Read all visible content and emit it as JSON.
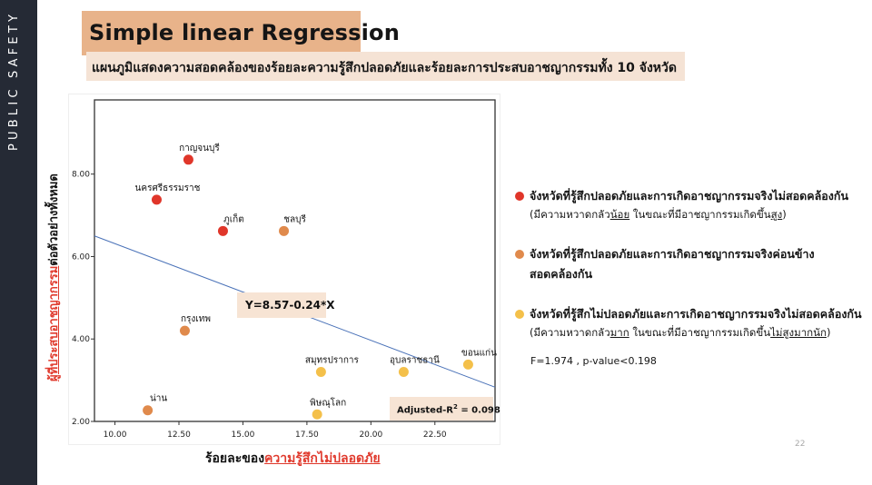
{
  "sidebar": {
    "text": "PUBLIC SAFETY"
  },
  "header": {
    "title": "Simple linear Regression",
    "subtitle": "แผนภูมิแสดงความสอดคล้องของร้อยละความรู้สึกปลอดภัยและร้อยละการประสบอาชญากรรมทั้ง 10 จังหวัด"
  },
  "axis_labels": {
    "y_prefix": "ผู้ที่ประสบอาชญากรรม",
    "y_suffix": "ต่อตัวอย่างทั้งหมด",
    "x_prefix": "ร้อยละของ",
    "x_highlight": "ความรู้สึกไม่ปลอดภัย"
  },
  "annotations": {
    "equation": "Y=8.57-0.24*X",
    "adj_r2_label": "Adjusted-R",
    "adj_r2_sup": "2",
    "adj_r2_value": " = 0.098",
    "stats": "F=1.974 ,  p-value<0.198"
  },
  "legend": [
    {
      "color": "#e0362a",
      "main": "จังหวัดที่รู้สึกปลอดภัยและการเกิดอาชญากรรมจริงไม่สอดคล้องกัน",
      "sub_parts": [
        "(มีความหวาดกลัว",
        "น้อย",
        "  ในขณะที่มีอาชญากรรมเกิดขึ้น",
        "สูง",
        ")"
      ]
    },
    {
      "color": "#e08a4c",
      "main": "จังหวัดที่รู้สึกปลอดภัยและการเกิดอาชญากรรมจริงค่อนข้าง",
      "main2": "สอดคล้องกัน"
    },
    {
      "color": "#f4c04a",
      "main": "จังหวัดที่รู้สึกไม่ปลอดภัยและการเกิดอาชญากรรมจริงไม่สอดคล้องกัน",
      "sub_parts": [
        "(มีความหวาดกลัว",
        "มาก",
        "  ในขณะที่มีอาชญากรรมเกิดขึ้น",
        "ไม่สูงมากนัก",
        ")"
      ]
    }
  ],
  "page_number": "22",
  "chart_data": {
    "type": "scatter",
    "title": "Simple linear Regression",
    "xlabel": "ร้อยละของความรู้สึกไม่ปลอดภัย",
    "ylabel": "ผู้ที่ประสบอาชญากรรมต่อตัวอย่างทั้งหมด",
    "xlim": [
      9.2,
      24.85
    ],
    "ylim": [
      2.0,
      9.8
    ],
    "x_ticks": [
      "10.00",
      "12.50",
      "15.00",
      "17.50",
      "20.00",
      "22.50"
    ],
    "y_ticks": [
      "2.00",
      "4.00",
      "6.00",
      "8.00"
    ],
    "grid": false,
    "points": [
      {
        "label": "กาญจนบุรี",
        "x": 12.87,
        "y": 8.35,
        "group": "red"
      },
      {
        "label": "นครศรีธรรมราช",
        "x": 11.63,
        "y": 7.38,
        "group": "red"
      },
      {
        "label": "ภูเก็ต",
        "x": 14.22,
        "y": 6.62,
        "group": "red"
      },
      {
        "label": "ชลบุรี",
        "x": 16.6,
        "y": 6.62,
        "group": "orange"
      },
      {
        "label": "กรุงเทพ",
        "x": 12.73,
        "y": 4.2,
        "group": "orange"
      },
      {
        "label": "น่าน",
        "x": 11.28,
        "y": 2.27,
        "group": "orange"
      },
      {
        "label": "สมุทรปราการ",
        "x": 18.05,
        "y": 3.2,
        "group": "yellow"
      },
      {
        "label": "อุบลราชธานี",
        "x": 21.28,
        "y": 3.2,
        "group": "yellow"
      },
      {
        "label": "ขอนแก่น",
        "x": 23.8,
        "y": 3.38,
        "group": "yellow"
      },
      {
        "label": "พิษณุโลก",
        "x": 17.9,
        "y": 2.17,
        "group": "yellow"
      }
    ],
    "group_colors": {
      "red": "#e0362a",
      "orange": "#e08a4c",
      "yellow": "#f4c04a"
    },
    "regression": {
      "intercept": 8.57,
      "slope": -0.24,
      "equation": "Y=8.57-0.24*X",
      "adjusted_r2": 0.098,
      "line_color": "#4a72b8"
    },
    "stats": {
      "F": 1.974,
      "p_value": "<0.198"
    }
  }
}
